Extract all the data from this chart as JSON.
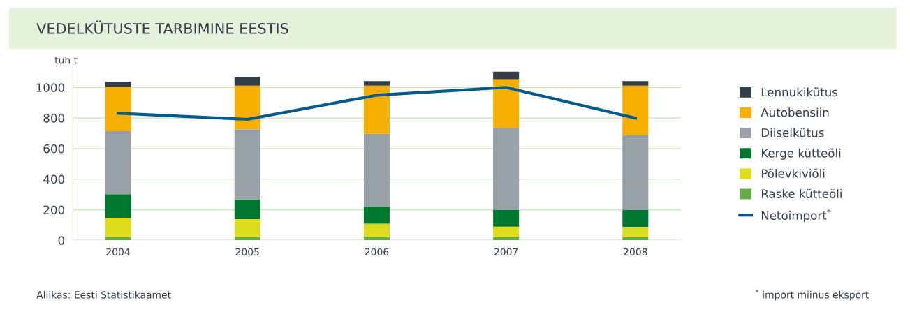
{
  "chart_data": {
    "type": "bar",
    "title": "VEDELKÜTUSTE TARBIMINE EESTIS",
    "ylabel": "tuh t",
    "categories": [
      "2004",
      "2005",
      "2006",
      "2007",
      "2008"
    ],
    "stacked": true,
    "series": [
      {
        "name": "Raske kütteõli",
        "color": "#62ad47",
        "values": [
          20,
          20,
          20,
          20,
          20
        ]
      },
      {
        "name": "Põlevkiviõli",
        "color": "#dedc1f",
        "values": [
          127,
          118,
          88,
          69,
          66
        ]
      },
      {
        "name": "Kerge kütteõli",
        "color": "#00782f",
        "values": [
          154,
          129,
          112,
          108,
          111
        ]
      },
      {
        "name": "Diiselkütus",
        "color": "#979fa7",
        "values": [
          413,
          458,
          476,
          537,
          491
        ]
      },
      {
        "name": "Autobensiin",
        "color": "#f6ae00",
        "values": [
          289,
          286,
          315,
          320,
          323
        ]
      },
      {
        "name": "Lennukikütus",
        "color": "#333e48",
        "values": [
          34,
          58,
          30,
          49,
          30
        ]
      },
      {
        "name": "Netoimport$^{*}$",
        "type": "line",
        "color": "#005a8c",
        "values": [
          831,
          791,
          949,
          1000,
          799
        ]
      }
    ],
    "ylim": [
      0,
      1120
    ],
    "yticks": [
      0,
      200,
      400,
      600,
      800,
      1000
    ],
    "grid": "y",
    "legend": "right",
    "annotations": [
      "Allikas: Eesti Statistikaamet",
      "$^{*}$ import miinus eksport"
    ]
  }
}
